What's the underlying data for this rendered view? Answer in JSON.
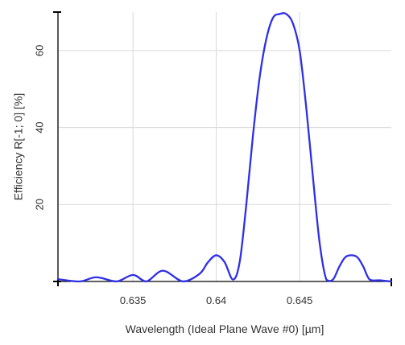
{
  "chart_data": {
    "type": "line",
    "title": "",
    "xlabel": "Wavelength (Ideal Plane Wave #0) [µm]",
    "ylabel": "Efficiency R[-1; 0] [%]",
    "xlim": [
      0.6305,
      0.6505
    ],
    "ylim": [
      0,
      70
    ],
    "xticks": [
      0.635,
      0.64,
      0.645
    ],
    "xtick_labels": [
      "0.635",
      "0.64",
      "0.645"
    ],
    "yticks": [
      20,
      40,
      60
    ],
    "ytick_labels": [
      "20",
      "40",
      "60"
    ],
    "grid": true,
    "colors": {
      "line": "#2f2fe8",
      "grid": "#d9d9d9",
      "axis": "#000000"
    },
    "series": [
      {
        "x": [
          0.6305,
          0.6318,
          0.6328,
          0.634,
          0.635,
          0.6358,
          0.6368,
          0.638,
          0.639,
          0.6395,
          0.64,
          0.6405,
          0.641,
          0.6414,
          0.6418,
          0.6422,
          0.6426,
          0.643,
          0.6434,
          0.6438,
          0.6442,
          0.6446,
          0.645,
          0.6454,
          0.6458,
          0.6462,
          0.6466,
          0.647,
          0.6474,
          0.6478,
          0.6484,
          0.6488,
          0.6492,
          0.6498,
          0.6505
        ],
        "y": [
          0.6,
          0.0,
          1.1,
          0.0,
          1.7,
          0.0,
          2.8,
          0.0,
          2.0,
          5.0,
          6.8,
          5.0,
          0.5,
          5.0,
          20,
          38,
          53,
          63,
          68.5,
          69.5,
          69.5,
          67,
          60,
          45,
          27,
          10,
          0.5,
          0.5,
          4.0,
          6.5,
          6.5,
          4.0,
          0.5,
          0.3,
          0.0
        ]
      }
    ]
  }
}
